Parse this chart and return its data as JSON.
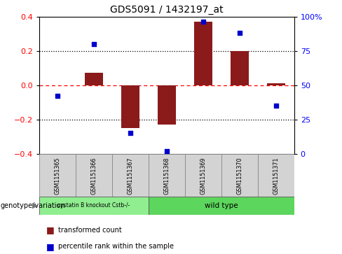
{
  "title": "GDS5091 / 1432197_at",
  "samples": [
    "GSM1151365",
    "GSM1151366",
    "GSM1151367",
    "GSM1151368",
    "GSM1151369",
    "GSM1151370",
    "GSM1151371"
  ],
  "red_bars": [
    0.0,
    0.07,
    -0.25,
    -0.23,
    0.37,
    0.2,
    0.01
  ],
  "blue_dots": [
    42,
    80,
    15,
    2,
    96,
    88,
    35
  ],
  "groups": [
    {
      "label": "cystatin B knockout Cstb-/-",
      "start": 0,
      "end": 3,
      "color": "#90ee90"
    },
    {
      "label": "wild type",
      "start": 3,
      "end": 7,
      "color": "#5cd65c"
    }
  ],
  "ylim_left": [
    -0.4,
    0.4
  ],
  "ylim_right": [
    0,
    100
  ],
  "yticks_left": [
    -0.4,
    -0.2,
    0.0,
    0.2,
    0.4
  ],
  "yticks_right": [
    0,
    25,
    50,
    75,
    100
  ],
  "ytick_labels_right": [
    "0",
    "25",
    "50",
    "75",
    "100%"
  ],
  "bar_color": "#8B1A1A",
  "dot_color": "#0000CC",
  "genotype_label": "genotype/variation",
  "legend_red": "transformed count",
  "legend_blue": "percentile rank within the sample",
  "bar_width": 0.5,
  "label_cell_color": "#d3d3d3",
  "label_cell_edge": "#888888"
}
